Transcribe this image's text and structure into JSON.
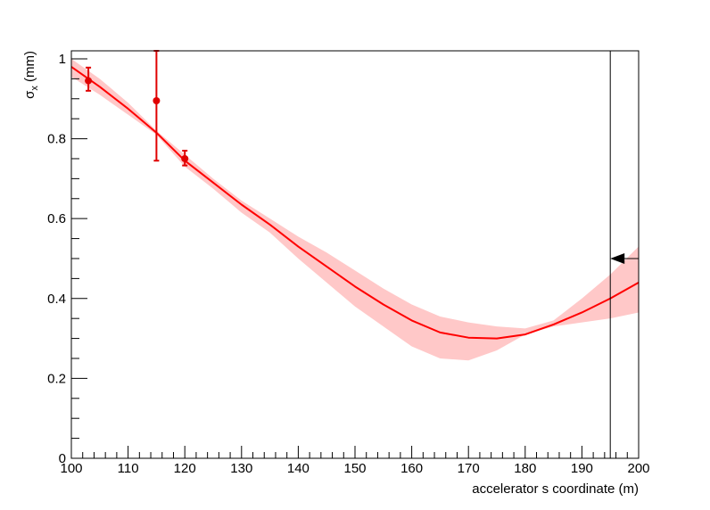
{
  "chart_data": {
    "type": "line",
    "xlabel": "accelerator s coordinate (m)",
    "ylabel": {
      "main": "σ",
      "sub": "x",
      "unit": " (mm)"
    },
    "xlim": [
      100,
      200
    ],
    "ylim": [
      0,
      1.02
    ],
    "x_ticks": [
      "100",
      "110",
      "120",
      "130",
      "140",
      "150",
      "160",
      "170",
      "180",
      "190",
      "200"
    ],
    "y_ticks": [
      {
        "value": 0,
        "label": "0"
      },
      {
        "value": 0.2,
        "label": "0.2"
      },
      {
        "value": 0.4,
        "label": "0.4"
      },
      {
        "value": 0.6,
        "label": "0.6"
      },
      {
        "value": 0.8,
        "label": "0.8"
      },
      {
        "value": 1.0,
        "label": "1"
      }
    ],
    "grid": false,
    "colors": {
      "fit": "#ff0000",
      "band": "#ffc8c8",
      "points": "#e00000",
      "marker": "#000000"
    },
    "fit_curve": {
      "x": [
        100,
        105,
        110,
        115,
        120,
        125,
        130,
        135,
        140,
        145,
        150,
        155,
        160,
        165,
        170,
        175,
        180,
        185,
        190,
        195,
        200
      ],
      "y": [
        0.98,
        0.93,
        0.875,
        0.815,
        0.745,
        0.69,
        0.635,
        0.585,
        0.53,
        0.48,
        0.43,
        0.385,
        0.345,
        0.315,
        0.302,
        0.3,
        0.31,
        0.335,
        0.365,
        0.4,
        0.44
      ]
    },
    "error_band": {
      "x": [
        100,
        105,
        110,
        115,
        120,
        125,
        130,
        135,
        140,
        145,
        150,
        155,
        160,
        165,
        170,
        175,
        180,
        185,
        190,
        195,
        200
      ],
      "upper": [
        1.0,
        0.95,
        0.89,
        0.82,
        0.76,
        0.7,
        0.645,
        0.6,
        0.555,
        0.515,
        0.47,
        0.425,
        0.385,
        0.355,
        0.34,
        0.33,
        0.325,
        0.345,
        0.4,
        0.46,
        0.53
      ],
      "lower": [
        0.955,
        0.91,
        0.86,
        0.81,
        0.73,
        0.675,
        0.615,
        0.565,
        0.5,
        0.44,
        0.38,
        0.33,
        0.28,
        0.25,
        0.245,
        0.27,
        0.31,
        0.33,
        0.34,
        0.35,
        0.365
      ]
    },
    "measurements": [
      {
        "x": 103,
        "y": 0.945,
        "err_low": 0.92,
        "err_high": 0.978
      },
      {
        "x": 115,
        "y": 0.895,
        "err_low": 0.745,
        "err_high": 1.02
      },
      {
        "x": 120,
        "y": 0.75,
        "err_low": 0.733,
        "err_high": 0.77
      }
    ],
    "vertical_line_x": 195,
    "arrow": {
      "x_from": 200,
      "x_to": 195,
      "y": 0.5
    }
  }
}
